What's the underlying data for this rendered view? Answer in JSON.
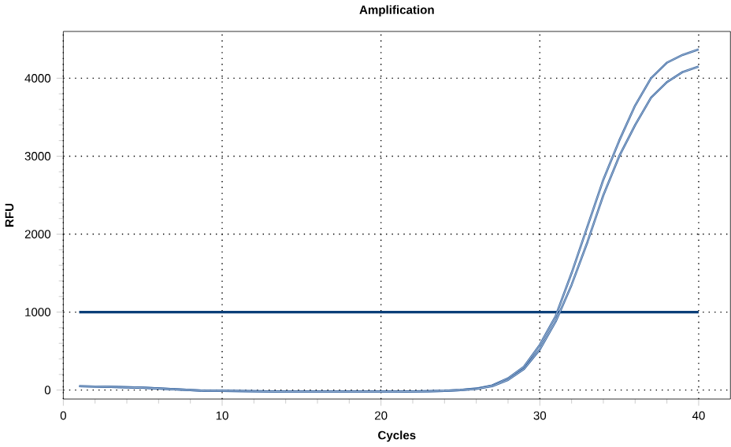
{
  "chart_data": {
    "type": "line",
    "title": "Amplification",
    "xlabel": "Cycles",
    "ylabel": "RFU",
    "x": [
      1,
      2,
      3,
      4,
      5,
      6,
      7,
      8,
      9,
      10,
      11,
      12,
      13,
      14,
      15,
      16,
      17,
      18,
      19,
      20,
      21,
      22,
      23,
      24,
      25,
      26,
      27,
      28,
      29,
      30,
      31,
      32,
      33,
      34,
      35,
      36,
      37,
      38,
      39,
      40
    ],
    "series": [
      {
        "color": "#3a68a3",
        "values": [
          50,
          45,
          40,
          35,
          30,
          20,
          10,
          0,
          -10,
          -10,
          -12,
          -15,
          -18,
          -20,
          -20,
          -20,
          -20,
          -20,
          -20,
          -20,
          -20,
          -18,
          -15,
          -10,
          0,
          20,
          60,
          150,
          300,
          580,
          950,
          1500,
          2100,
          2700,
          3200,
          3650,
          4000,
          4200,
          4300,
          4370
        ]
      },
      {
        "color": "#3a68a3",
        "values": [
          50,
          45,
          40,
          35,
          30,
          20,
          10,
          0,
          -10,
          -10,
          -12,
          -15,
          -18,
          -20,
          -20,
          -20,
          -20,
          -20,
          -20,
          -20,
          -20,
          -18,
          -15,
          -10,
          0,
          15,
          50,
          130,
          270,
          520,
          880,
          1350,
          1900,
          2500,
          3000,
          3400,
          3750,
          3950,
          4080,
          4150
        ]
      }
    ],
    "xlim": [
      0,
      42
    ],
    "ylim": [
      -115,
      4600
    ],
    "xticks": [
      0,
      10,
      20,
      30,
      40
    ],
    "yticks": [
      0,
      1000,
      2000,
      3000,
      4000
    ],
    "grid": true,
    "line_style": "solid",
    "marker": "none",
    "ref_lines": [
      {
        "axis": "y",
        "value": 1000,
        "color": "#0b3f78"
      }
    ]
  }
}
